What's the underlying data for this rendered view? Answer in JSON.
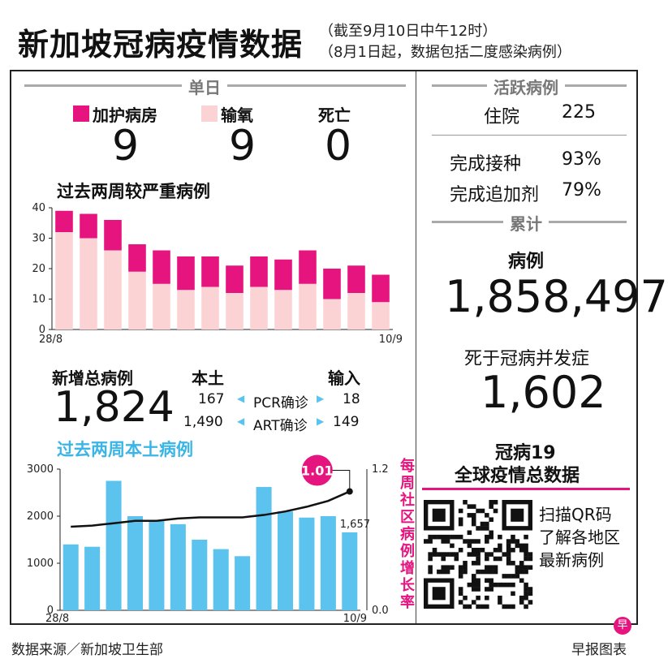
{
  "header": {
    "title": "新加坡冠病疫情数据",
    "subtitle_1": "（截至9月10日中午12时）",
    "subtitle_2": "（8月1日起，数据包括二度感染病例）"
  },
  "daily": {
    "section_label": "单日",
    "icu_label": "加护病房",
    "oxygen_label": "输氧",
    "death_label": "死亡",
    "icu_value": "9",
    "oxygen_value": "9",
    "death_value": "0"
  },
  "colors": {
    "icu": "#e6147e",
    "oxygen": "#fbd3d4",
    "bars_local": "#5bc3ee",
    "accent": "#e6147e"
  },
  "severe_title": "过去两周较严重病例",
  "cases": {
    "new_total_label": "新增总病例",
    "new_total_value": "1,824",
    "local_label": "本土",
    "import_label": "输入",
    "pcr_label": "PCR确诊",
    "art_label": "ART确诊",
    "pcr_local": "167",
    "pcr_import": "18",
    "art_local": "1,490",
    "art_import": "149"
  },
  "local_title": "过去两周本土病例",
  "right": {
    "active_label": "活跃病例",
    "hospital_label": "住院",
    "hospital_value": "225",
    "vaccinated_label": "完成接种",
    "vaccinated_value": "93%",
    "booster_label": "完成追加剂",
    "booster_value": "79%",
    "cumulative_label": "累计",
    "cases_label": "病例",
    "cases_value": "1,858,497",
    "deaths_label": "死于冠病并发症",
    "deaths_value": "1,602",
    "global_line1": "冠病19",
    "global_line2": "全球疫情总数据",
    "qr_text_1": "扫描QR码",
    "qr_text_2": "了解各地区",
    "qr_text_3": "最新病例"
  },
  "footer": {
    "source": "数据来源／新加坡卫生部",
    "credit": "早报图表"
  },
  "chart_data": [
    {
      "type": "bar",
      "title": "过去两周较严重病例",
      "x_first": "28/8",
      "x_last": "10/9",
      "stacked": true,
      "ylim": [
        0,
        40
      ],
      "yticks": [
        0,
        10,
        20,
        30,
        40
      ],
      "series": [
        {
          "name": "输氧",
          "values": [
            32,
            30,
            26,
            19,
            15,
            13,
            14,
            12,
            14,
            13,
            15,
            10,
            12,
            9
          ]
        },
        {
          "name": "加护病房",
          "values": [
            7,
            8,
            10,
            9,
            11,
            11,
            10,
            9,
            10,
            10,
            11,
            10,
            9,
            9
          ]
        }
      ]
    },
    {
      "type": "bar",
      "title": "过去两周本土病例",
      "x_first": "28/8",
      "x_last": "10/9",
      "ylim": [
        0,
        3000
      ],
      "yticks": [
        0,
        1000,
        2000,
        3000
      ],
      "values": [
        1400,
        1350,
        2750,
        2000,
        1900,
        1830,
        1500,
        1300,
        1150,
        2620,
        2100,
        1970,
        2000,
        1657
      ],
      "last_value_label": "1,657",
      "line": {
        "name": "每周社区病例增长率",
        "ylim": [
          0.0,
          1.2
        ],
        "yticks_labels": [
          "0.0",
          "1.2"
        ],
        "values": [
          0.71,
          0.72,
          0.74,
          0.76,
          0.76,
          0.78,
          0.79,
          0.79,
          0.79,
          0.81,
          0.84,
          0.88,
          0.93,
          1.01
        ],
        "last_label": "1.01"
      }
    }
  ]
}
